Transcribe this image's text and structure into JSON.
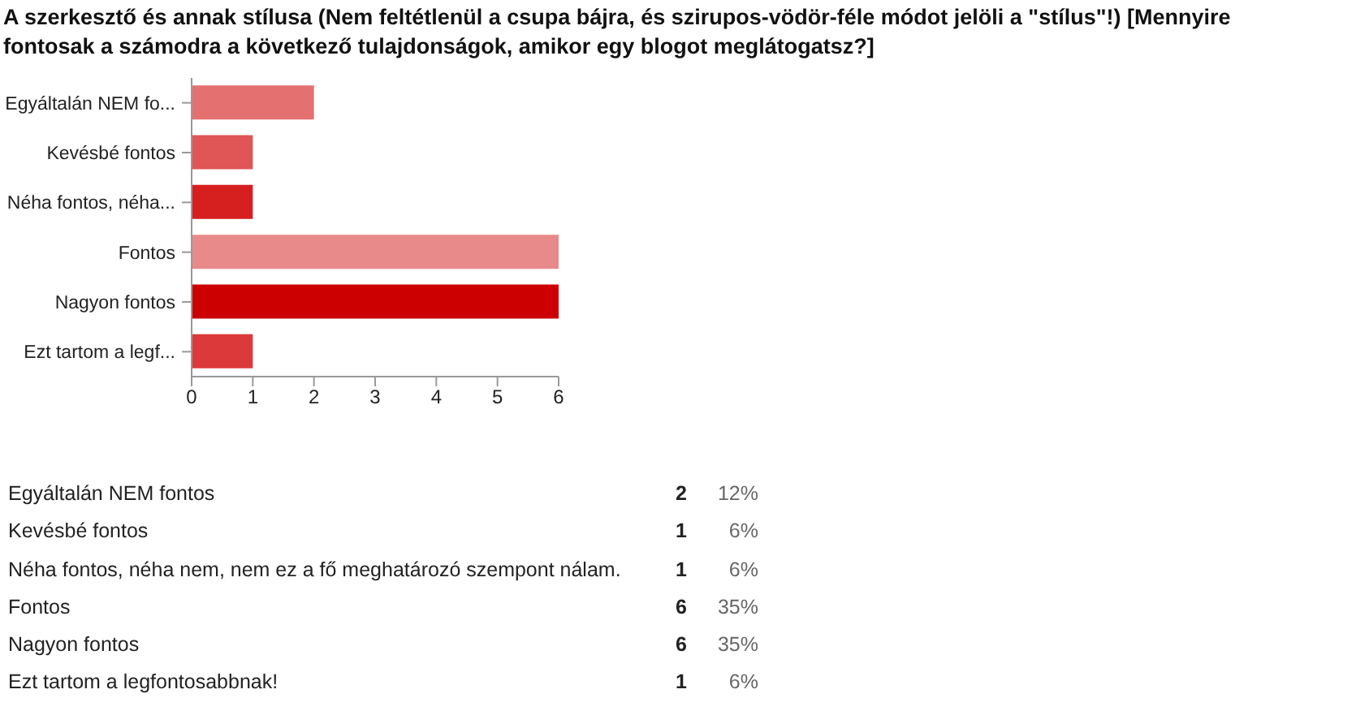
{
  "chart_data": {
    "type": "bar",
    "orientation": "horizontal",
    "title": "A szerkesztő és annak stílusa (Nem feltétlenül a csupa bájra, és szirupos-vödör-féle módot jelöli a \"stílus\"!) [Mennyire fontosak a számodra a következő tulajdonságok, amikor egy blogot meglátogatsz?]",
    "categories": [
      "Egyáltalán NEM fo...",
      "Kevésbé fontos",
      "Néha fontos, néha...",
      "Fontos",
      "Nagyon fontos",
      "Ezt tartom a legf..."
    ],
    "values": [
      2,
      1,
      1,
      6,
      6,
      1
    ],
    "colors": [
      "#e57070",
      "#e05555",
      "#d61f1f",
      "#e88a8a",
      "#cc0000",
      "#dc3a3a"
    ],
    "xlim": [
      0,
      6
    ],
    "xticks": [
      0,
      1,
      2,
      3,
      4,
      5,
      6
    ],
    "annotations": [
      "Egyáltalán NEM fontos",
      "2",
      "12%",
      "Kevésbé fontos",
      "1",
      "6%",
      "Néha fontos, néha nem, nem ez a fő meghatározó szempont nálam.",
      "1",
      "6%",
      "Fontos",
      "6",
      "35%",
      "Nagyon fontos",
      "6",
      "35%",
      "Ezt tartom a legfontosabbnak!",
      "1",
      "6%"
    ]
  }
}
